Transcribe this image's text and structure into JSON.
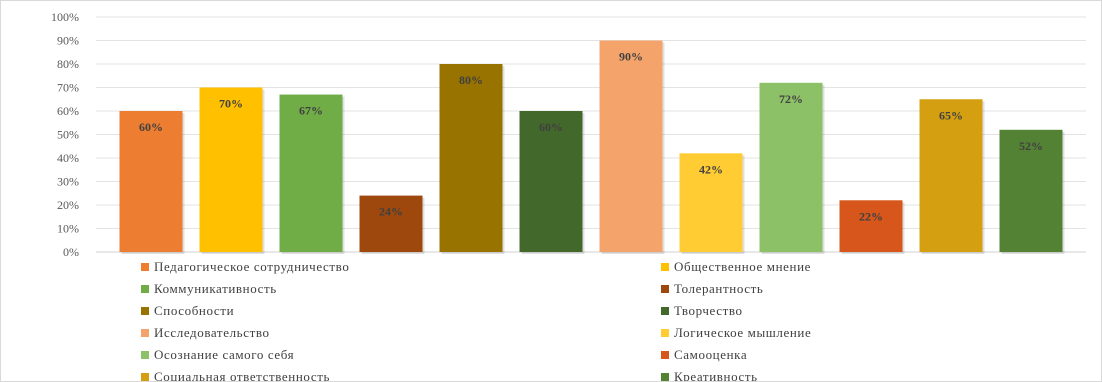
{
  "chart_data": {
    "type": "bar",
    "y_ticks": [
      "0%",
      "10%",
      "20%",
      "30%",
      "40%",
      "50%",
      "60%",
      "70%",
      "80%",
      "90%",
      "100%"
    ],
    "ylim": [
      0,
      100
    ],
    "grid": true,
    "legend_placement": "bottom",
    "series": [
      {
        "name": "Педагогическое сотрудничество",
        "value": 60,
        "label": "60%",
        "color": "#ED7D31"
      },
      {
        "name": "Общественное мнение",
        "value": 70,
        "label": "70%",
        "color": "#FFC000"
      },
      {
        "name": "Коммуникативность",
        "value": 67,
        "label": "67%",
        "color": "#70AD47"
      },
      {
        "name": "Толерантность",
        "value": 24,
        "label": "24%",
        "color": "#9E480E"
      },
      {
        "name": "Способности",
        "value": 80,
        "label": "80%",
        "color": "#997300"
      },
      {
        "name": "Творчество",
        "value": 60,
        "label": "60%",
        "color": "#43682B"
      },
      {
        "name": "Исследовательство",
        "value": 90,
        "label": "90%",
        "color": "#F4A46B"
      },
      {
        "name": "Логическое мышление",
        "value": 42,
        "label": "42%",
        "color": "#FFCD33"
      },
      {
        "name": "Осознание самого себя",
        "value": 72,
        "label": "72%",
        "color": "#8CC168"
      },
      {
        "name": "Самооценка",
        "value": 22,
        "label": "22%",
        "color": "#D6561B"
      },
      {
        "name": "Социальная ответственность",
        "value": 65,
        "label": "65%",
        "color": "#D4A011"
      },
      {
        "name": "Креативность",
        "value": 52,
        "label": "52%",
        "color": "#548235"
      }
    ]
  }
}
